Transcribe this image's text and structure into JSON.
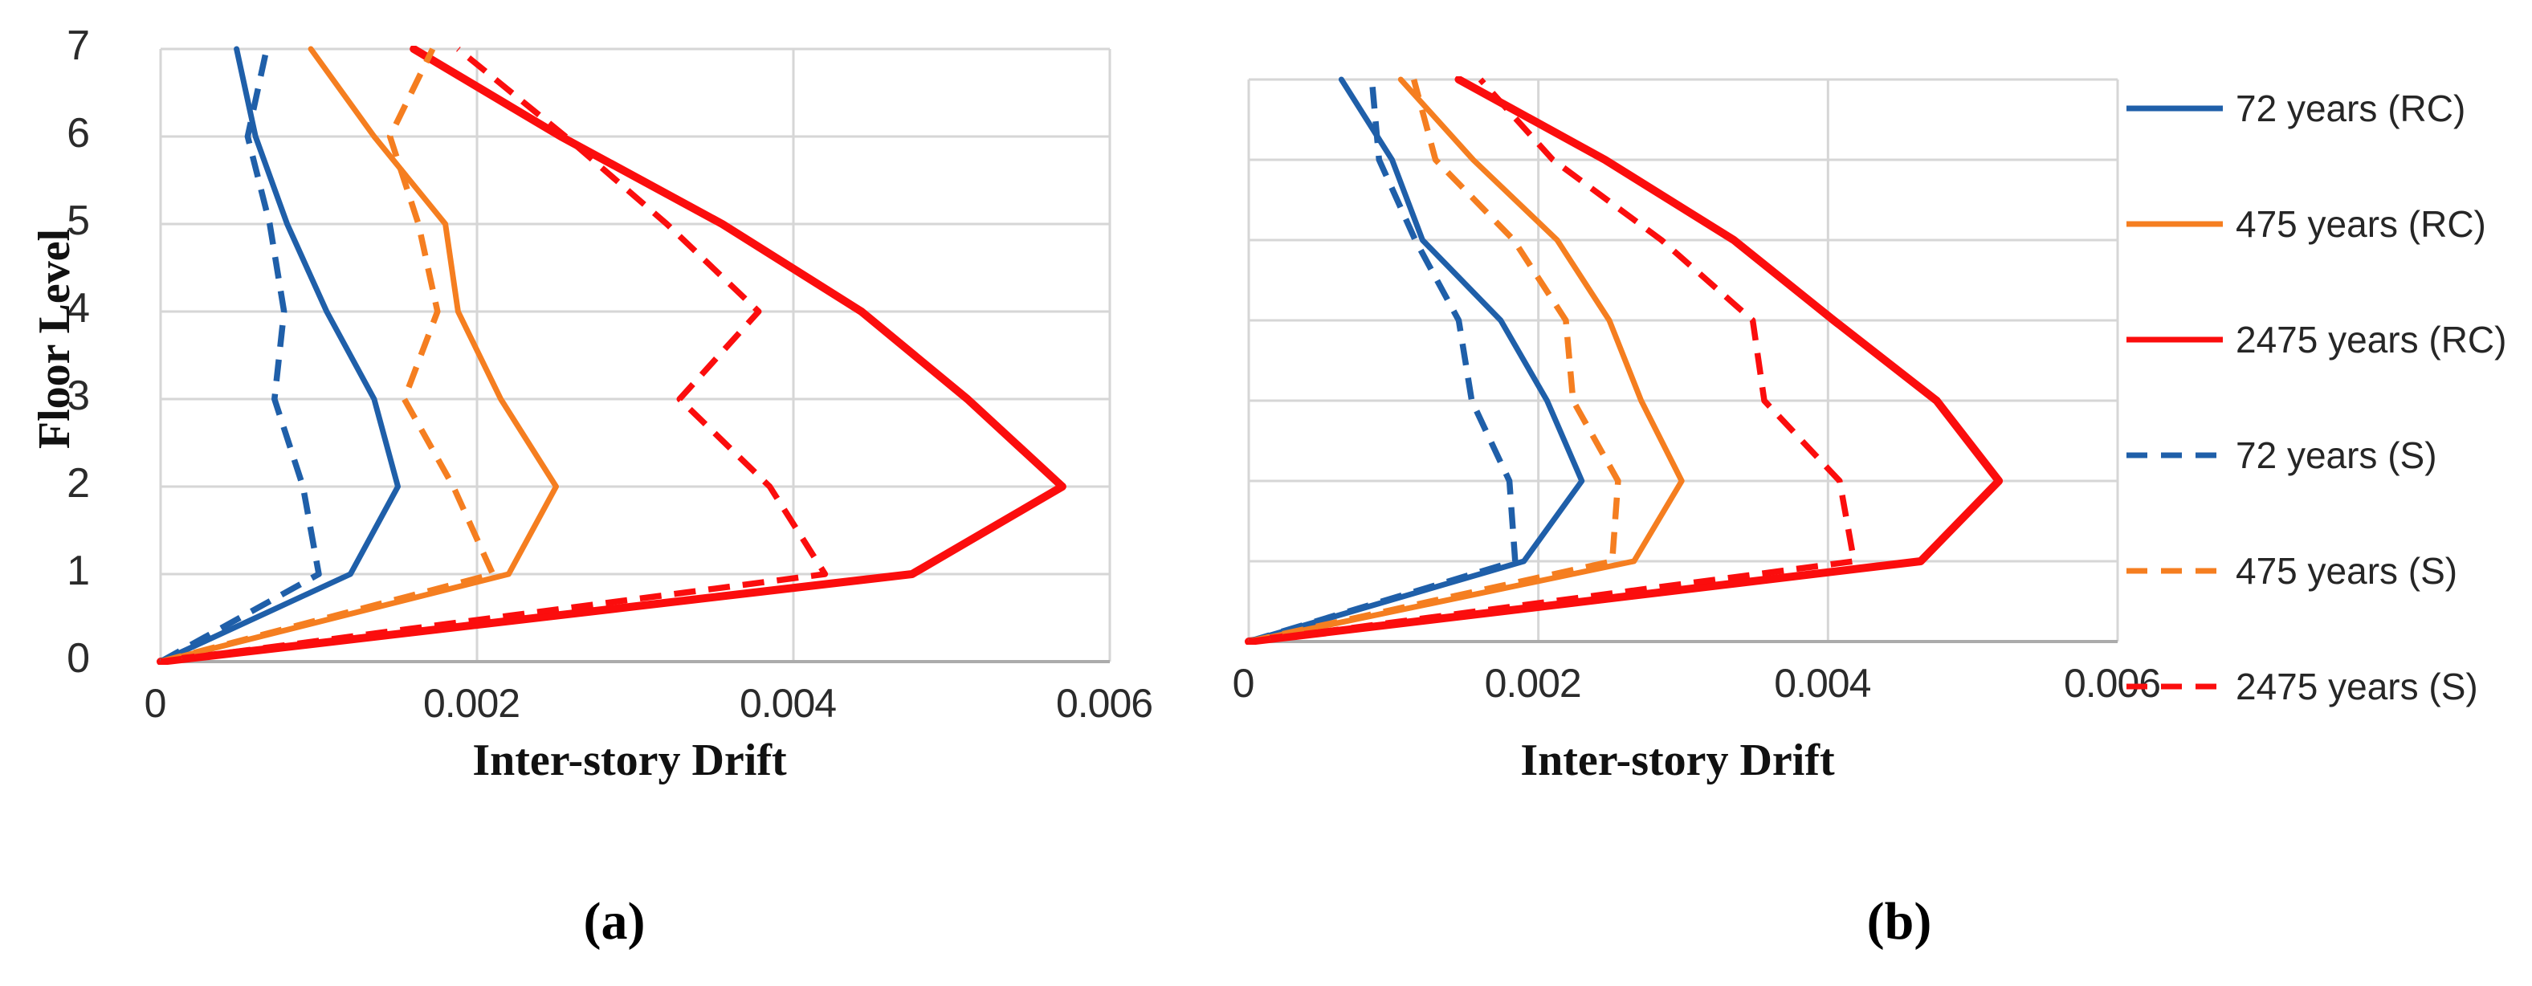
{
  "figure": {
    "background": "#ffffff",
    "captions": {
      "a": "(a)",
      "b": "(b)"
    }
  },
  "colors": {
    "blue": "#1F5FA9",
    "orange": "#F57E20",
    "red": "#FB0D0D",
    "gridline": "#D6D6D6",
    "axis_line": "#ABABAB",
    "tick_text": "#2b2b2b",
    "title_text": "#111111"
  },
  "legend": {
    "position": "right",
    "items": [
      {
        "label": "72 years (RC)",
        "color": "#1F5FA9",
        "style": "solid"
      },
      {
        "label": "475 years (RC)",
        "color": "#F57E20",
        "style": "solid"
      },
      {
        "label": "2475 years (RC)",
        "color": "#FB0D0D",
        "style": "solid"
      },
      {
        "label": "72 years (S)",
        "color": "#1F5FA9",
        "style": "dashed"
      },
      {
        "label": "475 years (S)",
        "color": "#F57E20",
        "style": "dashed"
      },
      {
        "label": "2475 years (S)",
        "color": "#FB0D0D",
        "style": "dashed"
      }
    ]
  },
  "chart_data": [
    {
      "id": "a",
      "type": "line",
      "caption": "(a)",
      "xlabel": "Inter-story Drift",
      "ylabel": "Floor Level",
      "xlim": [
        0,
        0.006
      ],
      "ylim": [
        0,
        7
      ],
      "grid": true,
      "x_ticks": [
        0,
        0.002,
        0.004,
        0.006
      ],
      "x_tick_labels": [
        "0",
        "0.002",
        "0.004",
        "0.006"
      ],
      "y_ticks": [
        0,
        1,
        2,
        3,
        4,
        5,
        6,
        7
      ],
      "y_tick_labels": [
        "0",
        "1",
        "2",
        "3",
        "4",
        "5",
        "6",
        "7"
      ],
      "floors": [
        0,
        1,
        2,
        3,
        4,
        5,
        6,
        7
      ],
      "series": [
        {
          "name": "72 years (RC)",
          "color": "#1F5FA9",
          "style": "solid",
          "drift": [
            0,
            0.0012,
            0.0015,
            0.00135,
            0.00105,
            0.0008,
            0.0006,
            0.00048
          ]
        },
        {
          "name": "475 years (RC)",
          "color": "#F57E20",
          "style": "solid",
          "drift": [
            0,
            0.0022,
            0.0025,
            0.00215,
            0.00188,
            0.0018,
            0.00135,
            0.00095
          ]
        },
        {
          "name": "2475 years (RC)",
          "color": "#FB0D0D",
          "style": "solid",
          "drift": [
            0,
            0.00475,
            0.0057,
            0.0051,
            0.00443,
            0.00355,
            0.00253,
            0.0016
          ]
        },
        {
          "name": "72 years (S)",
          "color": "#1F5FA9",
          "style": "dashed",
          "drift": [
            0,
            0.001,
            0.0009,
            0.00072,
            0.00078,
            0.00069,
            0.00055,
            0.00067
          ]
        },
        {
          "name": "475 years (S)",
          "color": "#F57E20",
          "style": "dashed",
          "drift": [
            0,
            0.0021,
            0.00185,
            0.00154,
            0.00175,
            0.00163,
            0.00145,
            0.00172
          ]
        },
        {
          "name": "2475 years (S)",
          "color": "#FB0D0D",
          "style": "dashed",
          "drift": [
            0,
            0.0042,
            0.00385,
            0.00328,
            0.00378,
            0.0032,
            0.00256,
            0.00188
          ]
        }
      ]
    },
    {
      "id": "b",
      "type": "line",
      "caption": "(b)",
      "xlabel": "Inter-story Drift",
      "ylabel": "",
      "xlim": [
        0,
        0.006
      ],
      "ylim": [
        0,
        7
      ],
      "grid": true,
      "x_ticks": [
        0,
        0.002,
        0.004,
        0.006
      ],
      "x_tick_labels": [
        "0",
        "0.002",
        "0.004",
        "0.006"
      ],
      "y_ticks": [
        0,
        1,
        2,
        3,
        4,
        5,
        6,
        7
      ],
      "y_tick_labels": [],
      "floors": [
        0,
        1,
        2,
        3,
        4,
        5,
        6,
        7
      ],
      "series": [
        {
          "name": "72 years (RC)",
          "color": "#1F5FA9",
          "style": "solid",
          "drift": [
            0,
            0.0019,
            0.0023,
            0.00206,
            0.00174,
            0.0012,
            0.00099,
            0.00064
          ]
        },
        {
          "name": "475 years (RC)",
          "color": "#F57E20",
          "style": "solid",
          "drift": [
            0,
            0.00266,
            0.00299,
            0.00271,
            0.00249,
            0.00213,
            0.00155,
            0.00105
          ]
        },
        {
          "name": "2475 years (RC)",
          "color": "#FB0D0D",
          "style": "solid",
          "drift": [
            0,
            0.00464,
            0.00518,
            0.00475,
            0.00404,
            0.00335,
            0.00246,
            0.00145
          ]
        },
        {
          "name": "72 years (S)",
          "color": "#1F5FA9",
          "style": "dashed",
          "drift": [
            0,
            0.00184,
            0.0018,
            0.00154,
            0.00145,
            0.00115,
            0.0009,
            0.00085
          ]
        },
        {
          "name": "475 years (S)",
          "color": "#F57E20",
          "style": "dashed",
          "drift": [
            0,
            0.00251,
            0.00255,
            0.00224,
            0.00219,
            0.00183,
            0.00129,
            0.00114
          ]
        },
        {
          "name": "2475 years (S)",
          "color": "#FB0D0D",
          "style": "dashed",
          "drift": [
            0,
            0.00418,
            0.00408,
            0.00356,
            0.00348,
            0.00285,
            0.0021,
            0.0016
          ]
        }
      ]
    }
  ]
}
